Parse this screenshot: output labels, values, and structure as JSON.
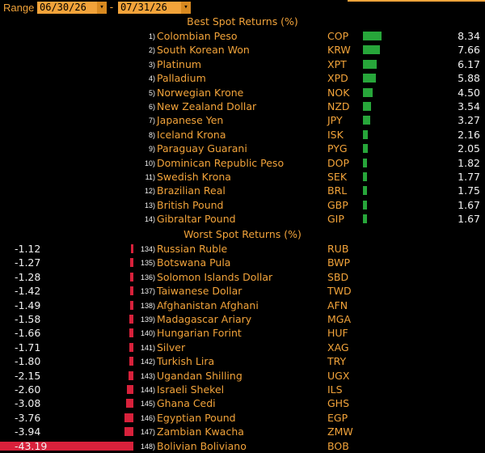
{
  "header": {
    "range_label": "Range",
    "start_date": "06/30/26",
    "end_date": "07/31/26",
    "separator": "-",
    "calendar_icon": "calendar-icon"
  },
  "best": {
    "title": "Best Spot Returns (%)",
    "rows": [
      {
        "rank": "1)",
        "name": "Colombian Peso",
        "code": "COP",
        "value": "8.34",
        "num": 8.34
      },
      {
        "rank": "2)",
        "name": "South Korean Won",
        "code": "KRW",
        "value": "7.66",
        "num": 7.66
      },
      {
        "rank": "3)",
        "name": "Platinum",
        "code": "XPT",
        "value": "6.17",
        "num": 6.17
      },
      {
        "rank": "4)",
        "name": "Palladium",
        "code": "XPD",
        "value": "5.88",
        "num": 5.88
      },
      {
        "rank": "5)",
        "name": "Norwegian Krone",
        "code": "NOK",
        "value": "4.50",
        "num": 4.5
      },
      {
        "rank": "6)",
        "name": "New Zealand Dollar",
        "code": "NZD",
        "value": "3.54",
        "num": 3.54
      },
      {
        "rank": "7)",
        "name": "Japanese Yen",
        "code": "JPY",
        "value": "3.27",
        "num": 3.27
      },
      {
        "rank": "8)",
        "name": "Iceland Krona",
        "code": "ISK",
        "value": "2.16",
        "num": 2.16
      },
      {
        "rank": "9)",
        "name": "Paraguay Guarani",
        "code": "PYG",
        "value": "2.05",
        "num": 2.05
      },
      {
        "rank": "10)",
        "name": "Dominican Republic Peso",
        "code": "DOP",
        "value": "1.82",
        "num": 1.82
      },
      {
        "rank": "11)",
        "name": "Swedish Krona",
        "code": "SEK",
        "value": "1.77",
        "num": 1.77
      },
      {
        "rank": "12)",
        "name": "Brazilian Real",
        "code": "BRL",
        "value": "1.75",
        "num": 1.75
      },
      {
        "rank": "13)",
        "name": "British Pound",
        "code": "GBP",
        "value": "1.67",
        "num": 1.67
      },
      {
        "rank": "14)",
        "name": "Gibraltar Pound",
        "code": "GIP",
        "value": "1.67",
        "num": 1.67
      }
    ]
  },
  "worst": {
    "title": "Worst Spot Returns (%)",
    "rows": [
      {
        "rank": "134)",
        "name": "Russian Ruble",
        "code": "RUB",
        "value": "-1.12",
        "num": -1.12
      },
      {
        "rank": "135)",
        "name": "Botswana Pula",
        "code": "BWP",
        "value": "-1.27",
        "num": -1.27
      },
      {
        "rank": "136)",
        "name": "Solomon Islands Dollar",
        "code": "SBD",
        "value": "-1.28",
        "num": -1.28
      },
      {
        "rank": "137)",
        "name": "Taiwanese Dollar",
        "code": "TWD",
        "value": "-1.42",
        "num": -1.42
      },
      {
        "rank": "138)",
        "name": "Afghanistan Afghani",
        "code": "AFN",
        "value": "-1.49",
        "num": -1.49
      },
      {
        "rank": "139)",
        "name": "Madagascar Ariary",
        "code": "MGA",
        "value": "-1.58",
        "num": -1.58
      },
      {
        "rank": "140)",
        "name": "Hungarian Forint",
        "code": "HUF",
        "value": "-1.66",
        "num": -1.66
      },
      {
        "rank": "141)",
        "name": "Silver",
        "code": "XAG",
        "value": "-1.71",
        "num": -1.71
      },
      {
        "rank": "142)",
        "name": "Turkish Lira",
        "code": "TRY",
        "value": "-1.80",
        "num": -1.8
      },
      {
        "rank": "143)",
        "name": "Ugandan Shilling",
        "code": "UGX",
        "value": "-2.15",
        "num": -2.15
      },
      {
        "rank": "144)",
        "name": "Israeli Shekel",
        "code": "ILS",
        "value": "-2.60",
        "num": -2.6
      },
      {
        "rank": "145)",
        "name": "Ghana Cedi",
        "code": "GHS",
        "value": "-3.08",
        "num": -3.08
      },
      {
        "rank": "146)",
        "name": "Egyptian Pound",
        "code": "EGP",
        "value": "-3.76",
        "num": -3.76
      },
      {
        "rank": "147)",
        "name": "Zambian Kwacha",
        "code": "ZMW",
        "value": "-3.94",
        "num": -3.94
      },
      {
        "rank": "148)",
        "name": "Bolivian Boliviano",
        "code": "BOB",
        "value": "-43.19",
        "num": -43.19
      }
    ]
  },
  "colors": {
    "accent": "#f2a33a",
    "positive_bar": "#27a63a",
    "negative_bar": "#d8213b",
    "background": "#000000"
  }
}
